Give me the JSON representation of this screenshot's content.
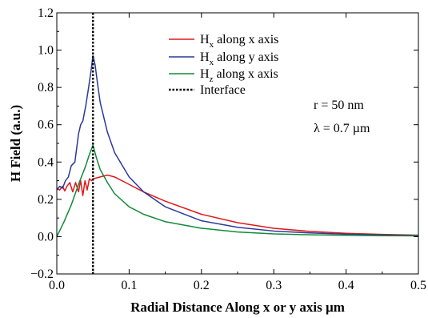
{
  "chart_data": {
    "type": "line",
    "xlabel": "Radial Distance Along x or y axis µm",
    "ylabel": "H Field (a.u.)",
    "xlim": [
      0,
      0.5
    ],
    "ylim": [
      -0.2,
      1.2
    ],
    "x_ticks": [
      0.0,
      0.1,
      0.2,
      0.3,
      0.4,
      0.5
    ],
    "x_tick_labels": [
      "0.0",
      "0.1",
      "0.2",
      "0.3",
      "0.4",
      "0.5"
    ],
    "y_ticks": [
      -0.2,
      0.0,
      0.2,
      0.4,
      0.6,
      0.8,
      1.0,
      1.2
    ],
    "y_tick_labels": [
      "−0.2",
      "0.0",
      "0.2",
      "0.4",
      "0.6",
      "0.8",
      "1.0",
      "1.2"
    ],
    "grid": false,
    "legend_position": "top-center",
    "legend": [
      {
        "main": "H",
        "sub": "x",
        "rest": " along x axis",
        "color": "#e0191b",
        "style": "solid"
      },
      {
        "main": "H",
        "sub": "x",
        "rest": " along y axis",
        "color": "#2b3a98",
        "style": "solid"
      },
      {
        "main": "H",
        "sub": "z",
        "rest": " along x axis",
        "color": "#138a3a",
        "style": "solid"
      },
      {
        "main": "Interface",
        "sub": "",
        "rest": "",
        "color": "#000000",
        "style": "dotted"
      }
    ],
    "annotations": [
      "r = 50 nm",
      "λ = 0.7 µm"
    ],
    "interface_x": 0.05,
    "series": [
      {
        "color": "#e0191b",
        "x": [
          0.0,
          0.004,
          0.008,
          0.011,
          0.014,
          0.018,
          0.022,
          0.026,
          0.03,
          0.033,
          0.036,
          0.039,
          0.042,
          0.045,
          0.048,
          0.05,
          0.06,
          0.07,
          0.08,
          0.1,
          0.12,
          0.15,
          0.2,
          0.25,
          0.3,
          0.35,
          0.4,
          0.45,
          0.5
        ],
        "y": [
          0.26,
          0.25,
          0.27,
          0.245,
          0.27,
          0.29,
          0.24,
          0.29,
          0.24,
          0.3,
          0.22,
          0.3,
          0.25,
          0.31,
          0.3,
          0.31,
          0.32,
          0.33,
          0.32,
          0.28,
          0.24,
          0.19,
          0.12,
          0.075,
          0.045,
          0.028,
          0.018,
          0.012,
          0.008
        ]
      },
      {
        "color": "#2b3a98",
        "x": [
          0.0,
          0.004,
          0.008,
          0.012,
          0.016,
          0.02,
          0.025,
          0.03,
          0.033,
          0.036,
          0.04,
          0.044,
          0.047,
          0.05,
          0.053,
          0.056,
          0.06,
          0.07,
          0.08,
          0.1,
          0.12,
          0.15,
          0.2,
          0.25,
          0.3,
          0.35,
          0.4,
          0.45,
          0.5
        ],
        "y": [
          0.25,
          0.27,
          0.26,
          0.3,
          0.32,
          0.38,
          0.4,
          0.55,
          0.6,
          0.62,
          0.7,
          0.8,
          0.88,
          0.97,
          0.92,
          0.83,
          0.72,
          0.56,
          0.45,
          0.32,
          0.24,
          0.16,
          0.085,
          0.05,
          0.03,
          0.02,
          0.013,
          0.009,
          0.006
        ]
      },
      {
        "color": "#138a3a",
        "x": [
          0.0,
          0.01,
          0.02,
          0.03,
          0.04,
          0.045,
          0.05,
          0.055,
          0.06,
          0.07,
          0.08,
          0.1,
          0.12,
          0.15,
          0.2,
          0.25,
          0.3,
          0.35,
          0.4,
          0.45,
          0.5
        ],
        "y": [
          0.0,
          0.08,
          0.17,
          0.28,
          0.38,
          0.44,
          0.49,
          0.42,
          0.36,
          0.29,
          0.23,
          0.16,
          0.12,
          0.08,
          0.045,
          0.025,
          0.015,
          0.01,
          0.007,
          0.005,
          0.004
        ]
      }
    ]
  }
}
